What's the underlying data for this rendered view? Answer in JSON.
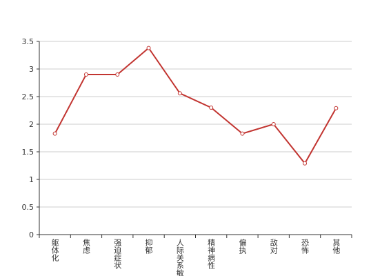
{
  "chart_data": {
    "type": "line",
    "categories": [
      "躯体化",
      "焦虑",
      "强迫症状",
      "抑郁",
      "人际关系敏感",
      "精神病性",
      "偏执",
      "敌对",
      "恐怖",
      "其他"
    ],
    "series": [
      {
        "color": "#c23531",
        "values": [
          1.83,
          2.9,
          2.9,
          3.38,
          2.56,
          2.3,
          1.83,
          2.0,
          1.29,
          2.29
        ]
      }
    ],
    "ylim": [
      0,
      3.5
    ],
    "yticks": [
      0,
      0.5,
      1,
      1.5,
      2,
      2.5,
      3,
      3.5
    ],
    "grid": true
  }
}
